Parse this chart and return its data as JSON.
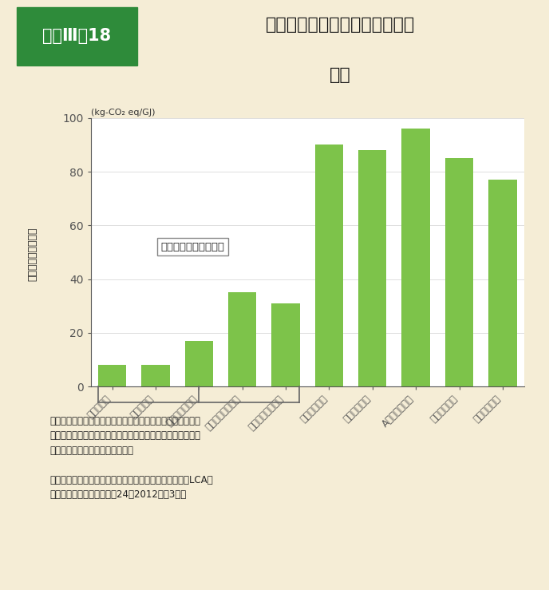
{
  "title_label": "資料Ⅲ－18",
  "title_main_line1": "燃料別の温室効果ガス排出量の",
  "title_main_line2": "比較",
  "categories": [
    "雪ストーブ",
    "雪ボイラー",
    "チップボイラー",
    "ペレットストーブ",
    "ペレットボイラー",
    "灯油ストーブ",
    "灯油ボイラー",
    "A重油ボイラー",
    "ガスストーブ",
    "ガスボイラー"
  ],
  "values": [
    8,
    8,
    17,
    35,
    31,
    90,
    88,
    96,
    85,
    77
  ],
  "bar_color": "#7DC34A",
  "bg_color": "#F5EDD6",
  "plot_bg_color": "#FFFFFF",
  "ylabel_chars": [
    "温",
    "室",
    "効",
    "果",
    "ガ",
    "ス",
    "排",
    "出",
    "量"
  ],
  "ylabel": "温室効果ガス排出量",
  "unit_label": "(kg-CO₂ eq/GJ)",
  "yticks": [
    0,
    20,
    40,
    60,
    80,
    100
  ],
  "ylim": [
    0,
    100
  ],
  "biomass_label": "木質バイオマスが燃料",
  "note_line1": "注：それぞれの燃料を専用の熱利用機器で燃焼した場合の単",
  "note_line2": "　　位発熱量当たりの原料調達から製造、燃焼までの全段階",
  "note_line3": "　　における二酸化炭素排出量。",
  "source_line1": "資料：株式会社森のエネルギー研究所「木質バイオマスLCA評",
  "source_line2": "　　価事業報告書」（平成24（2012）年3月）",
  "title_box_color": "#2E8B3A",
  "title_box_text_color": "#FFFFFF",
  "axis_color": "#555555"
}
